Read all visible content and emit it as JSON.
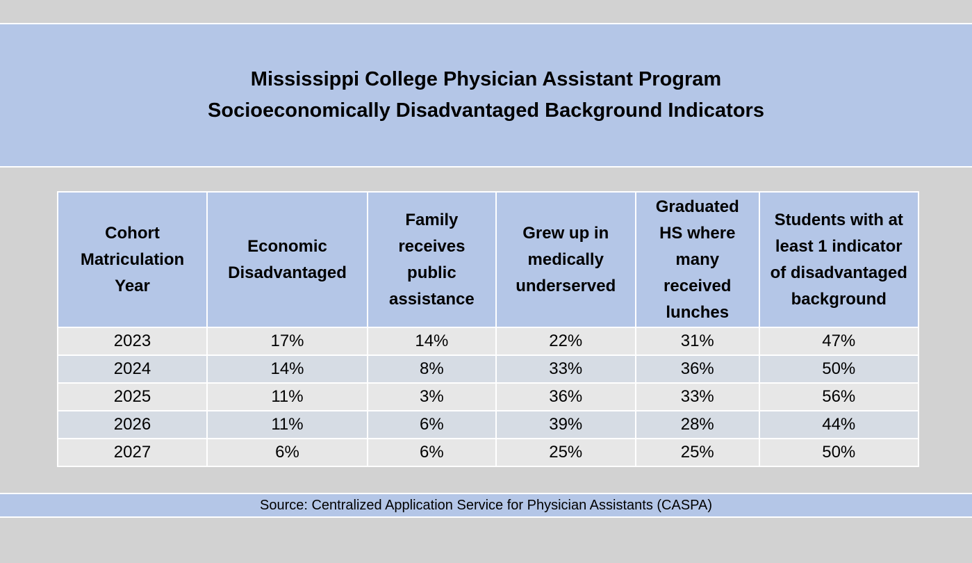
{
  "title": {
    "line1": "Mississippi College Physician Assistant Program",
    "line2": "Socioeconomically Disadvantaged Background Indicators"
  },
  "table": {
    "headers": [
      "Cohort Matriculation Year",
      "Economic Disadvantaged",
      "Family receives public assistance",
      "Grew up in medically underserved",
      "Graduated HS where many received lunches",
      "Students with at least 1 indicator of disadvantaged background"
    ],
    "rows": [
      [
        "2023",
        "17%",
        "14%",
        "22%",
        "31%",
        "47%"
      ],
      [
        "2024",
        "14%",
        "8%",
        "33%",
        "36%",
        "50%"
      ],
      [
        "2025",
        "11%",
        "3%",
        "36%",
        "33%",
        "56%"
      ],
      [
        "2026",
        "11%",
        "6%",
        "39%",
        "28%",
        "44%"
      ],
      [
        "2027",
        "6%",
        "6%",
        "25%",
        "25%",
        "50%"
      ]
    ]
  },
  "source": "Source: Centralized Application Service for Physician Assistants (CASPA)",
  "colors": {
    "header_blue": "#b4c6e7",
    "row_light": "#e7e7e7",
    "row_alt": "#d6dce4",
    "background": "#d9d9d9"
  }
}
